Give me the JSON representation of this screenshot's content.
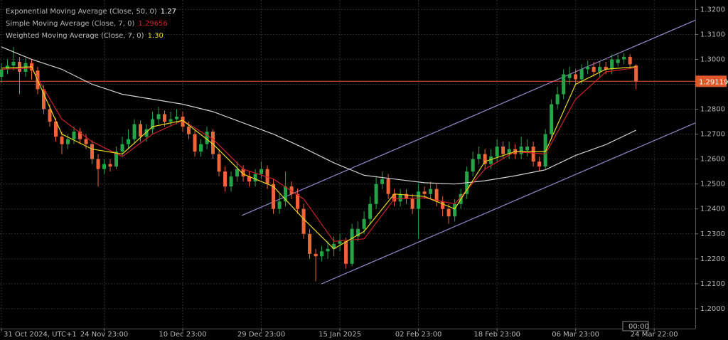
{
  "chart_data": {
    "type": "candlestick",
    "xlim": [
      -0.235,
      114.8
    ],
    "ylim": [
      1.192,
      1.3238
    ],
    "grid": true,
    "up_color": "#26a548",
    "down_color": "#f0643a",
    "xticks": [
      {
        "value": 0,
        "label": "31 Oct 2024, UTC+1"
      },
      {
        "value": 17,
        "label": "24 Nov 23:00"
      },
      {
        "value": 30,
        "label": "10 Dec 23:00"
      },
      {
        "value": 43,
        "label": "29 Dec 23:00"
      },
      {
        "value": 56,
        "label": "15 Jan 2025"
      },
      {
        "value": 69,
        "label": "02 Feb 23:00"
      },
      {
        "value": 82,
        "label": "18 Feb 23:00"
      },
      {
        "value": 95,
        "label": "06 Mar 23:00"
      },
      {
        "value": 108,
        "label": "24 Mar 22:00"
      }
    ],
    "yticks": [
      {
        "value": 1.32,
        "label": "1.3200"
      },
      {
        "value": 1.31,
        "label": "1.3100"
      },
      {
        "value": 1.3,
        "label": "1.3000"
      },
      {
        "value": 1.29,
        "label": "1.2900"
      },
      {
        "value": 1.28,
        "label": "1.2800"
      },
      {
        "value": 1.27,
        "label": "1.2700"
      },
      {
        "value": 1.26,
        "label": "1.2600"
      },
      {
        "value": 1.25,
        "label": "1.2500"
      },
      {
        "value": 1.24,
        "label": "1.2400"
      },
      {
        "value": 1.23,
        "label": "1.2300"
      },
      {
        "value": 1.22,
        "label": "1.2200"
      },
      {
        "value": 1.21,
        "label": "1.2100"
      },
      {
        "value": 1.2,
        "label": "1.2000"
      }
    ],
    "crosshair_label": "00:00",
    "last_price": 1.29119,
    "last_price_color": "#e0582a",
    "candles": [
      {
        "o": 1.293,
        "h": 1.2985,
        "l": 1.2905,
        "c": 1.296
      },
      {
        "o": 1.296,
        "h": 1.3,
        "l": 1.294,
        "c": 1.2975
      },
      {
        "o": 1.2975,
        "h": 1.305,
        "l": 1.2955,
        "c": 1.299
      },
      {
        "o": 1.299,
        "h": 1.301,
        "l": 1.286,
        "c": 1.295
      },
      {
        "o": 1.295,
        "h": 1.3005,
        "l": 1.293,
        "c": 1.2985
      },
      {
        "o": 1.2985,
        "h": 1.3,
        "l": 1.292,
        "c": 1.2955
      },
      {
        "o": 1.2955,
        "h": 1.297,
        "l": 1.286,
        "c": 1.288
      },
      {
        "o": 1.288,
        "h": 1.2895,
        "l": 1.278,
        "c": 1.28
      },
      {
        "o": 1.28,
        "h": 1.282,
        "l": 1.273,
        "c": 1.275
      },
      {
        "o": 1.275,
        "h": 1.2765,
        "l": 1.267,
        "c": 1.269
      },
      {
        "o": 1.269,
        "h": 1.271,
        "l": 1.262,
        "c": 1.266
      },
      {
        "o": 1.266,
        "h": 1.27,
        "l": 1.264,
        "c": 1.268
      },
      {
        "o": 1.268,
        "h": 1.273,
        "l": 1.266,
        "c": 1.271
      },
      {
        "o": 1.271,
        "h": 1.2725,
        "l": 1.266,
        "c": 1.268
      },
      {
        "o": 1.268,
        "h": 1.27,
        "l": 1.264,
        "c": 1.266
      },
      {
        "o": 1.266,
        "h": 1.2675,
        "l": 1.258,
        "c": 1.26
      },
      {
        "o": 1.26,
        "h": 1.262,
        "l": 1.249,
        "c": 1.256
      },
      {
        "o": 1.256,
        "h": 1.26,
        "l": 1.254,
        "c": 1.258
      },
      {
        "o": 1.258,
        "h": 1.26,
        "l": 1.255,
        "c": 1.257
      },
      {
        "o": 1.257,
        "h": 1.265,
        "l": 1.256,
        "c": 1.263
      },
      {
        "o": 1.263,
        "h": 1.269,
        "l": 1.261,
        "c": 1.266
      },
      {
        "o": 1.266,
        "h": 1.272,
        "l": 1.264,
        "c": 1.268
      },
      {
        "o": 1.268,
        "h": 1.276,
        "l": 1.266,
        "c": 1.274
      },
      {
        "o": 1.274,
        "h": 1.2755,
        "l": 1.267,
        "c": 1.269
      },
      {
        "o": 1.269,
        "h": 1.274,
        "l": 1.267,
        "c": 1.272
      },
      {
        "o": 1.272,
        "h": 1.279,
        "l": 1.27,
        "c": 1.276
      },
      {
        "o": 1.276,
        "h": 1.281,
        "l": 1.274,
        "c": 1.278
      },
      {
        "o": 1.278,
        "h": 1.2795,
        "l": 1.273,
        "c": 1.275
      },
      {
        "o": 1.275,
        "h": 1.279,
        "l": 1.273,
        "c": 1.276
      },
      {
        "o": 1.276,
        "h": 1.28,
        "l": 1.274,
        "c": 1.277
      },
      {
        "o": 1.277,
        "h": 1.279,
        "l": 1.271,
        "c": 1.273
      },
      {
        "o": 1.273,
        "h": 1.275,
        "l": 1.268,
        "c": 1.27
      },
      {
        "o": 1.27,
        "h": 1.2715,
        "l": 1.261,
        "c": 1.263
      },
      {
        "o": 1.263,
        "h": 1.268,
        "l": 1.261,
        "c": 1.266
      },
      {
        "o": 1.266,
        "h": 1.273,
        "l": 1.264,
        "c": 1.271
      },
      {
        "o": 1.271,
        "h": 1.272,
        "l": 1.26,
        "c": 1.262
      },
      {
        "o": 1.262,
        "h": 1.264,
        "l": 1.253,
        "c": 1.255
      },
      {
        "o": 1.255,
        "h": 1.257,
        "l": 1.247,
        "c": 1.249
      },
      {
        "o": 1.249,
        "h": 1.255,
        "l": 1.247,
        "c": 1.253
      },
      {
        "o": 1.253,
        "h": 1.259,
        "l": 1.251,
        "c": 1.256
      },
      {
        "o": 1.256,
        "h": 1.2575,
        "l": 1.251,
        "c": 1.253
      },
      {
        "o": 1.253,
        "h": 1.255,
        "l": 1.249,
        "c": 1.251
      },
      {
        "o": 1.251,
        "h": 1.256,
        "l": 1.249,
        "c": 1.254
      },
      {
        "o": 1.254,
        "h": 1.259,
        "l": 1.252,
        "c": 1.256
      },
      {
        "o": 1.256,
        "h": 1.2575,
        "l": 1.248,
        "c": 1.25
      },
      {
        "o": 1.25,
        "h": 1.252,
        "l": 1.238,
        "c": 1.24
      },
      {
        "o": 1.24,
        "h": 1.246,
        "l": 1.238,
        "c": 1.243
      },
      {
        "o": 1.243,
        "h": 1.255,
        "l": 1.241,
        "c": 1.249
      },
      {
        "o": 1.249,
        "h": 1.251,
        "l": 1.244,
        "c": 1.246
      },
      {
        "o": 1.246,
        "h": 1.248,
        "l": 1.238,
        "c": 1.24
      },
      {
        "o": 1.24,
        "h": 1.242,
        "l": 1.228,
        "c": 1.23
      },
      {
        "o": 1.23,
        "h": 1.232,
        "l": 1.22,
        "c": 1.222
      },
      {
        "o": 1.222,
        "h": 1.224,
        "l": 1.211,
        "c": 1.221
      },
      {
        "o": 1.221,
        "h": 1.225,
        "l": 1.219,
        "c": 1.223
      },
      {
        "o": 1.223,
        "h": 1.227,
        "l": 1.22,
        "c": 1.224
      },
      {
        "o": 1.224,
        "h": 1.229,
        "l": 1.221,
        "c": 1.226
      },
      {
        "o": 1.226,
        "h": 1.23,
        "l": 1.223,
        "c": 1.227
      },
      {
        "o": 1.227,
        "h": 1.2285,
        "l": 1.216,
        "c": 1.218
      },
      {
        "o": 1.218,
        "h": 1.234,
        "l": 1.217,
        "c": 1.232
      },
      {
        "o": 1.229,
        "h": 1.235,
        "l": 1.227,
        "c": 1.232
      },
      {
        "o": 1.232,
        "h": 1.239,
        "l": 1.23,
        "c": 1.236
      },
      {
        "o": 1.236,
        "h": 1.245,
        "l": 1.234,
        "c": 1.242
      },
      {
        "o": 1.242,
        "h": 1.253,
        "l": 1.24,
        "c": 1.25
      },
      {
        "o": 1.25,
        "h": 1.255,
        "l": 1.248,
        "c": 1.252
      },
      {
        "o": 1.252,
        "h": 1.254,
        "l": 1.244,
        "c": 1.246
      },
      {
        "o": 1.246,
        "h": 1.248,
        "l": 1.241,
        "c": 1.243
      },
      {
        "o": 1.243,
        "h": 1.248,
        "l": 1.241,
        "c": 1.246
      },
      {
        "o": 1.246,
        "h": 1.248,
        "l": 1.242,
        "c": 1.244
      },
      {
        "o": 1.244,
        "h": 1.246,
        "l": 1.238,
        "c": 1.24
      },
      {
        "o": 1.24,
        "h": 1.25,
        "l": 1.228,
        "c": 1.247
      },
      {
        "o": 1.247,
        "h": 1.249,
        "l": 1.244,
        "c": 1.246
      },
      {
        "o": 1.246,
        "h": 1.251,
        "l": 1.244,
        "c": 1.248
      },
      {
        "o": 1.248,
        "h": 1.25,
        "l": 1.241,
        "c": 1.243
      },
      {
        "o": 1.243,
        "h": 1.245,
        "l": 1.237,
        "c": 1.24
      },
      {
        "o": 1.24,
        "h": 1.242,
        "l": 1.234,
        "c": 1.237
      },
      {
        "o": 1.237,
        "h": 1.244,
        "l": 1.235,
        "c": 1.242
      },
      {
        "o": 1.242,
        "h": 1.248,
        "l": 1.24,
        "c": 1.246
      },
      {
        "o": 1.246,
        "h": 1.257,
        "l": 1.244,
        "c": 1.255
      },
      {
        "o": 1.255,
        "h": 1.263,
        "l": 1.253,
        "c": 1.26
      },
      {
        "o": 1.26,
        "h": 1.265,
        "l": 1.258,
        "c": 1.262
      },
      {
        "o": 1.262,
        "h": 1.264,
        "l": 1.256,
        "c": 1.258
      },
      {
        "o": 1.258,
        "h": 1.264,
        "l": 1.256,
        "c": 1.261
      },
      {
        "o": 1.261,
        "h": 1.268,
        "l": 1.259,
        "c": 1.265
      },
      {
        "o": 1.265,
        "h": 1.267,
        "l": 1.26,
        "c": 1.262
      },
      {
        "o": 1.262,
        "h": 1.267,
        "l": 1.26,
        "c": 1.264
      },
      {
        "o": 1.264,
        "h": 1.266,
        "l": 1.26,
        "c": 1.262
      },
      {
        "o": 1.262,
        "h": 1.269,
        "l": 1.26,
        "c": 1.265
      },
      {
        "o": 1.2635,
        "h": 1.268,
        "l": 1.261,
        "c": 1.265
      },
      {
        "o": 1.265,
        "h": 1.267,
        "l": 1.257,
        "c": 1.259
      },
      {
        "o": 1.259,
        "h": 1.261,
        "l": 1.255,
        "c": 1.257
      },
      {
        "o": 1.257,
        "h": 1.272,
        "l": 1.256,
        "c": 1.27
      },
      {
        "o": 1.27,
        "h": 1.284,
        "l": 1.268,
        "c": 1.282
      },
      {
        "o": 1.282,
        "h": 1.289,
        "l": 1.28,
        "c": 1.286
      },
      {
        "o": 1.286,
        "h": 1.296,
        "l": 1.284,
        "c": 1.294
      },
      {
        "o": 1.2925,
        "h": 1.297,
        "l": 1.29,
        "c": 1.294
      },
      {
        "o": 1.294,
        "h": 1.296,
        "l": 1.29,
        "c": 1.292
      },
      {
        "o": 1.292,
        "h": 1.298,
        "l": 1.29,
        "c": 1.296
      },
      {
        "o": 1.296,
        "h": 1.2995,
        "l": 1.294,
        "c": 1.297
      },
      {
        "o": 1.297,
        "h": 1.299,
        "l": 1.293,
        "c": 1.295
      },
      {
        "o": 1.295,
        "h": 1.299,
        "l": 1.293,
        "c": 1.297
      },
      {
        "o": 1.297,
        "h": 1.299,
        "l": 1.294,
        "c": 1.296
      },
      {
        "o": 1.296,
        "h": 1.302,
        "l": 1.294,
        "c": 1.3
      },
      {
        "o": 1.2985,
        "h": 1.302,
        "l": 1.297,
        "c": 1.3
      },
      {
        "o": 1.3,
        "h": 1.3025,
        "l": 1.298,
        "c": 1.301
      },
      {
        "o": 1.301,
        "h": 1.302,
        "l": 1.296,
        "c": 1.298
      },
      {
        "o": 1.2975,
        "h": 1.298,
        "l": 1.288,
        "c": 1.2912
      }
    ],
    "series": [
      {
        "name": "Exponential Moving Average (Close, 50, 0)",
        "color": "#d0d0d0",
        "last_value": 1.27,
        "x": [
          0,
          5,
          10,
          15,
          20,
          25,
          30,
          35,
          40,
          45,
          50,
          55,
          60,
          65,
          70,
          75,
          80,
          85,
          90,
          95,
          100,
          105
        ],
        "values": [
          1.305,
          1.3,
          1.296,
          1.29,
          1.286,
          1.284,
          1.282,
          1.279,
          1.2745,
          1.27,
          1.2645,
          1.2585,
          1.2535,
          1.252,
          1.2505,
          1.25,
          1.2513,
          1.2533,
          1.2557,
          1.2615,
          1.2658,
          1.2716
        ]
      },
      {
        "name": "Simple Moving Average (Close, 7, 0)",
        "color": "#d0202a",
        "last_value": 1.29656,
        "x": [
          0,
          5,
          10,
          15,
          20,
          25,
          30,
          35,
          40,
          45,
          50,
          55,
          60,
          65,
          70,
          75,
          80,
          85,
          90,
          95,
          100,
          105
        ],
        "values": [
          1.296,
          1.2965,
          1.276,
          1.267,
          1.261,
          1.27,
          1.2755,
          1.268,
          1.256,
          1.252,
          1.244,
          1.227,
          1.228,
          1.244,
          1.2445,
          1.242,
          1.256,
          1.263,
          1.262,
          1.284,
          1.295,
          1.2966
        ]
      },
      {
        "name": "Weighted Moving Average (Close, 7, 0)",
        "color": "#e8d820",
        "last_value": {
          "value": 1.3,
          "label": "1.30"
        },
        "x": [
          0,
          5,
          10,
          15,
          20,
          25,
          30,
          35,
          40,
          45,
          50,
          55,
          60,
          65,
          70,
          75,
          80,
          85,
          90,
          95,
          100,
          105
        ],
        "values": [
          1.2965,
          1.297,
          1.27,
          1.264,
          1.262,
          1.273,
          1.2755,
          1.266,
          1.254,
          1.249,
          1.236,
          1.224,
          1.231,
          1.246,
          1.245,
          1.24,
          1.259,
          1.263,
          1.263,
          1.29,
          1.296,
          1.297
        ]
      }
    ],
    "channel_color": "#9a86cc",
    "channel": [
      {
        "x": [
          39.8,
          114.8
        ],
        "values": [
          1.2374,
          1.3157
        ]
      },
      {
        "x": [
          52.9,
          114.8
        ],
        "values": [
          1.2099,
          1.2745
        ]
      }
    ]
  }
}
